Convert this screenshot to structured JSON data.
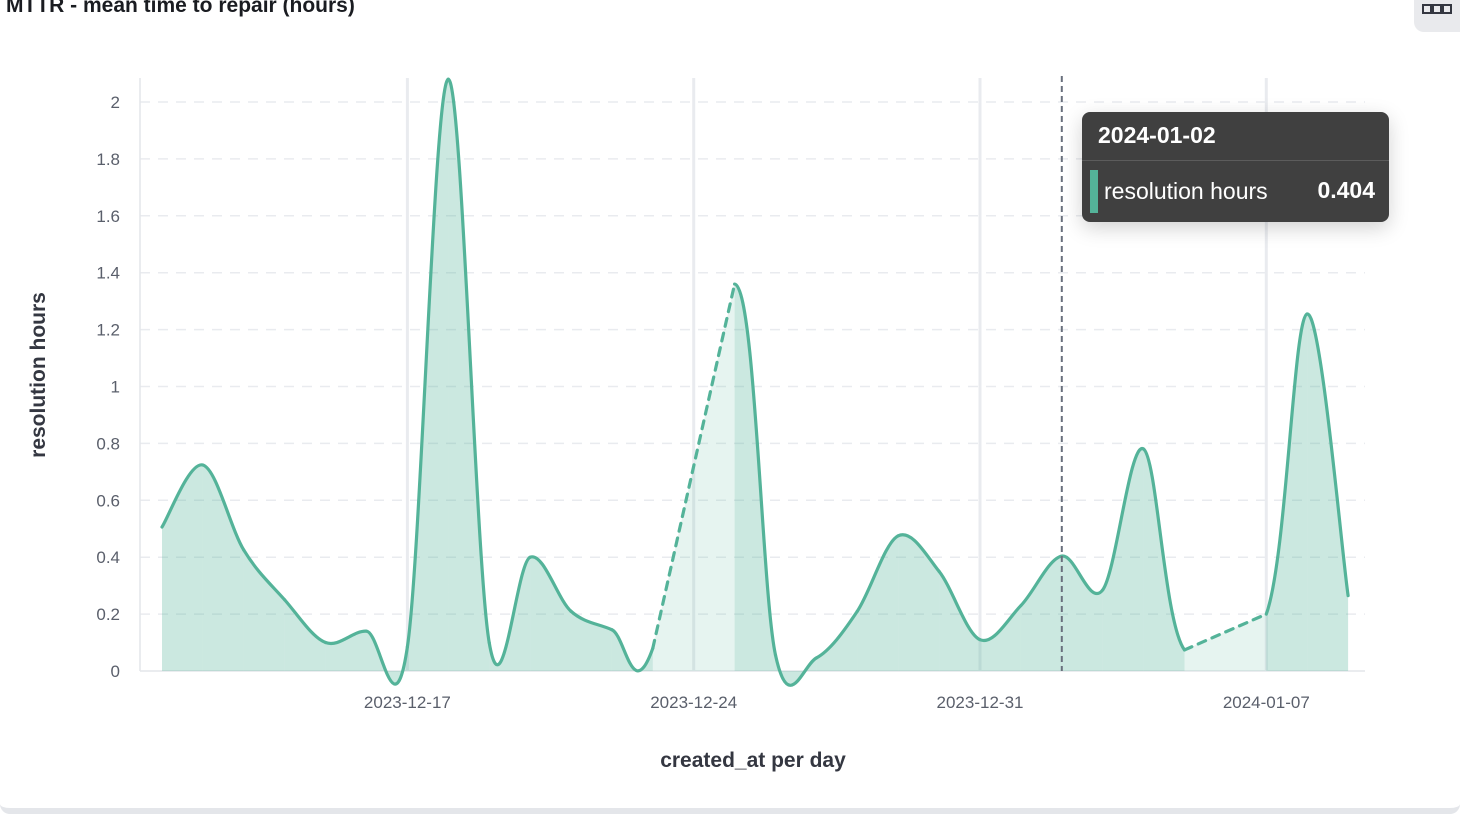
{
  "panel": {
    "title": "MTTR - mean time to repair (hours)",
    "menu_icon": "boxes-horizontal-icon"
  },
  "tooltip": {
    "date": "2024-01-02",
    "series": "resolution hours",
    "value": "0.404",
    "color": "#54b399"
  },
  "chart_data": {
    "type": "area",
    "title": "MTTR - mean time to repair (hours)",
    "xlabel": "created_at per day",
    "ylabel": "resolution hours",
    "ylim": [
      0,
      2
    ],
    "yticks": [
      "0",
      "0.2",
      "0.4",
      "0.6",
      "0.8",
      "1",
      "1.2",
      "1.4",
      "1.6",
      "1.8",
      "2"
    ],
    "xticks": [
      {
        "label": "2023-12-17",
        "index": 6
      },
      {
        "label": "2023-12-24",
        "index": 13
      },
      {
        "label": "2023-12-31",
        "index": 20
      },
      {
        "label": "2024-01-07",
        "index": 27
      }
    ],
    "x": [
      "2023-12-11",
      "2023-12-12",
      "2023-12-13",
      "2023-12-14",
      "2023-12-15",
      "2023-12-16",
      "2023-12-17",
      "2023-12-18",
      "2023-12-19",
      "2023-12-20",
      "2023-12-21",
      "2023-12-22",
      "2023-12-23",
      "2023-12-24",
      "2023-12-25",
      "2023-12-26",
      "2023-12-27",
      "2023-12-28",
      "2023-12-29",
      "2023-12-30",
      "2023-12-31",
      "2024-01-01",
      "2024-01-02",
      "2024-01-03",
      "2024-01-04",
      "2024-01-05",
      "2024-01-06",
      "2024-01-07",
      "2024-01-08",
      "2024-01-09"
    ],
    "series": [
      {
        "name": "resolution hours",
        "color": "#54b399",
        "values": [
          0.506,
          0.724,
          0.425,
          0.25,
          0.1,
          0.14,
          0.085,
          2.08,
          0.1,
          0.4,
          0.21,
          0.145,
          0.08,
          null,
          1.36,
          0.056,
          0.046,
          0.21,
          0.475,
          0.35,
          0.11,
          0.23,
          0.404,
          0.285,
          0.78,
          0.074,
          null,
          0.2,
          1.255,
          0.265
        ]
      }
    ],
    "grid": true,
    "crosshair_index": 22
  }
}
